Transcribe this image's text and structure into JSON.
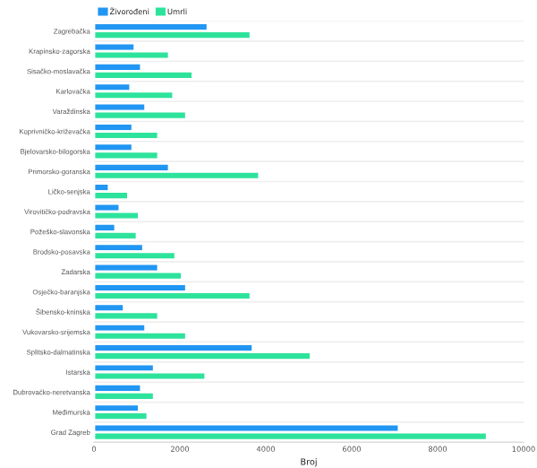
{
  "chart_data": {
    "type": "bar",
    "orientation": "horizontal",
    "xlabel": "Broj",
    "categories": [
      "Zagrebačka",
      "Krapinsko-zagorska",
      "Sisačko-moslavačka",
      "Karlovačka",
      "Varaždinska",
      "Koprivničko-križevačka",
      "Bjelovarsko-bilogorska",
      "Primorsko-goranska",
      "Ličko-senjska",
      "Virovitičko-podravska",
      "Požeško-slavonska",
      "Brodsko-posavska",
      "Zadarska",
      "Osječko-baranjska",
      "Šibensko-kninska",
      "Vukovarsko-srijemska",
      "Splitsko-dalmatinska",
      "Istarska",
      "Dubrovačko-neretvanska",
      "Međimurska",
      "Grad Zagreb"
    ],
    "series": [
      {
        "name": "Živorođeni",
        "color": "#2196f3",
        "values": [
          2650,
          950,
          1100,
          850,
          1200,
          900,
          900,
          1750,
          350,
          600,
          500,
          1150,
          1500,
          2150,
          700,
          1200,
          3700,
          1400,
          1100,
          1050,
          7100
        ]
      },
      {
        "name": "Umrli",
        "color": "#2de39b",
        "values": [
          3650,
          1750,
          2300,
          1850,
          2150,
          1500,
          1500,
          3850,
          800,
          1050,
          1000,
          1900,
          2050,
          3650,
          1500,
          2150,
          5050,
          2600,
          1400,
          1250,
          9150
        ]
      }
    ],
    "xlim": [
      0,
      10000
    ],
    "xticks": [
      0,
      2000,
      4000,
      6000,
      8000,
      10000
    ],
    "grid": "y",
    "legend": "top left"
  }
}
